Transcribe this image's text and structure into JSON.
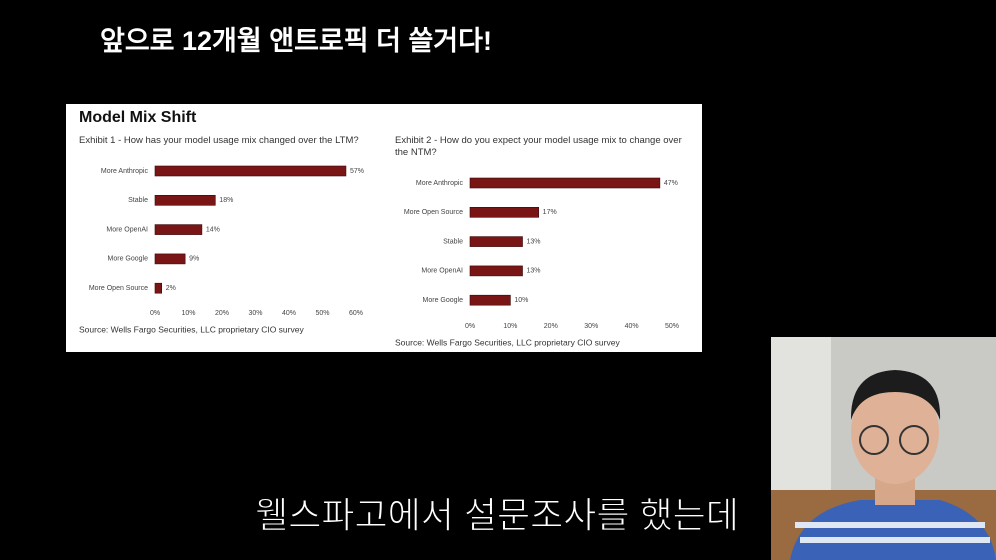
{
  "header": {
    "title": "앞으로 12개월 앤트로픽 더 쓸거다!"
  },
  "panel": {
    "title": "Model Mix Shift"
  },
  "subtitle": "웰스파고에서 설문조사를 했는데",
  "chart_data": [
    {
      "type": "barh",
      "title": "Exhibit 1 - How has your model usage mix changed over the LTM?",
      "categories": [
        "More Anthropic",
        "Stable",
        "More OpenAI",
        "More Google",
        "More Open Source"
      ],
      "values": [
        57,
        18,
        14,
        9,
        2
      ],
      "value_labels": [
        "57%",
        "18%",
        "14%",
        "9%",
        "2%"
      ],
      "color": "#7a1515",
      "xlim": [
        0,
        60
      ],
      "xticks": [
        {
          "value": 0,
          "label": "0%"
        },
        {
          "value": 10,
          "label": "10%"
        },
        {
          "value": 20,
          "label": "20%"
        },
        {
          "value": 30,
          "label": "30%"
        },
        {
          "value": 40,
          "label": "40%"
        },
        {
          "value": 50,
          "label": "50%"
        },
        {
          "value": 60,
          "label": "60%"
        }
      ],
      "source": "Source: Wells Fargo Securities, LLC proprietary CIO survey"
    },
    {
      "type": "barh",
      "title": "Exhibit 2 - How do you expect your model usage mix to change over the NTM?",
      "categories": [
        "More Anthropic",
        "More Open Source",
        "Stable",
        "More OpenAI",
        "More Google"
      ],
      "values": [
        47,
        17,
        13,
        13,
        10
      ],
      "value_labels": [
        "47%",
        "17%",
        "13%",
        "13%",
        "10%"
      ],
      "color": "#7a1515",
      "xlim": [
        0,
        50
      ],
      "xticks": [
        {
          "value": 0,
          "label": "0%"
        },
        {
          "value": 10,
          "label": "10%"
        },
        {
          "value": 20,
          "label": "20%"
        },
        {
          "value": 30,
          "label": "30%"
        },
        {
          "value": 40,
          "label": "40%"
        },
        {
          "value": 50,
          "label": "50%"
        }
      ],
      "source": "Source: Wells Fargo Securities, LLC proprietary CIO survey"
    }
  ]
}
